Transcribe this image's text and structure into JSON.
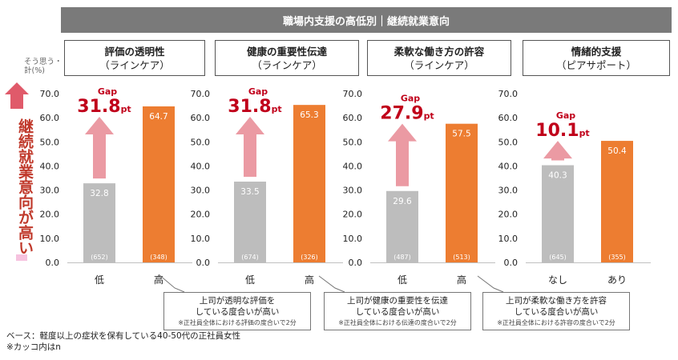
{
  "banner": "職場内支援の高低別｜継続就業意向",
  "y_unit_label": [
    "そう思う・",
    "計(%)"
  ],
  "vertical_label": "継続就業意向が高い",
  "notes": [
    "ベース：軽度以上の症状を保有している40-50代の正社員女性",
    "※カッコ内はn"
  ],
  "panels": [
    {
      "title": "評価の透明性",
      "subtitle": "（ラインケア）"
    },
    {
      "title": "健康の重要性伝達",
      "subtitle": "（ラインケア）"
    },
    {
      "title": "柔軟な働き方の許容",
      "subtitle": "（ラインケア）"
    },
    {
      "title": "情緒的支援",
      "subtitle": "（ピアサポート）"
    }
  ],
  "callouts": [
    {
      "line1": "上司が透明な評価を",
      "line2": "している度合いが高い",
      "note": "※正社員全体における評価の度合いで2分"
    },
    {
      "line1": "上司が健康の重要性を伝達",
      "line2": "している度合いが高い",
      "note": "※正社員全体における伝達の度合いで2分"
    },
    {
      "line1": "上司が柔軟な働き方を許容",
      "line2": "している度合いが高い",
      "note": "※正社員全体における許容の度合いで2分"
    }
  ],
  "chart_data": [
    {
      "type": "bar",
      "title": "評価の透明性（ラインケア）",
      "categories": [
        "低",
        "高"
      ],
      "values": [
        32.8,
        64.7
      ],
      "n": [
        "(652)",
        "(348)"
      ],
      "gap_label": "Gap",
      "gap_value": "31.8",
      "gap_unit": "pt",
      "ylim": [
        0,
        70
      ],
      "yticks": [
        "0.0",
        "10.0",
        "20.0",
        "30.0",
        "40.0",
        "50.0",
        "60.0",
        "70.0"
      ],
      "colors": [
        "#bdbdbd",
        "#ed7d31"
      ]
    },
    {
      "type": "bar",
      "title": "健康の重要性伝達（ラインケア）",
      "categories": [
        "低",
        "高"
      ],
      "values": [
        33.5,
        65.3
      ],
      "n": [
        "(674)",
        "(326)"
      ],
      "gap_label": "Gap",
      "gap_value": "31.8",
      "gap_unit": "pt",
      "ylim": [
        0,
        70
      ],
      "yticks": [
        "0.0",
        "10.0",
        "20.0",
        "30.0",
        "40.0",
        "50.0",
        "60.0",
        "70.0"
      ],
      "colors": [
        "#bdbdbd",
        "#ed7d31"
      ]
    },
    {
      "type": "bar",
      "title": "柔軟な働き方の許容（ラインケア）",
      "categories": [
        "低",
        "高"
      ],
      "values": [
        29.6,
        57.5
      ],
      "n": [
        "(487)",
        "(513)"
      ],
      "gap_label": "Gap",
      "gap_value": "27.9",
      "gap_unit": "pt",
      "ylim": [
        0,
        70
      ],
      "yticks": [
        "0.0",
        "10.0",
        "20.0",
        "30.0",
        "40.0",
        "50.0",
        "60.0",
        "70.0"
      ],
      "colors": [
        "#bdbdbd",
        "#ed7d31"
      ]
    },
    {
      "type": "bar",
      "title": "情緒的支援（ピアサポート）",
      "categories": [
        "なし",
        "あり"
      ],
      "values": [
        40.3,
        50.4
      ],
      "n": [
        "(645)",
        "(355)"
      ],
      "gap_label": "Gap",
      "gap_value": "10.1",
      "gap_unit": "pt",
      "ylim": [
        0,
        70
      ],
      "yticks": [
        "0.0",
        "10.0",
        "20.0",
        "30.0",
        "40.0",
        "50.0",
        "60.0",
        "70.0"
      ],
      "colors": [
        "#bdbdbd",
        "#ed7d31"
      ]
    }
  ],
  "colors": {
    "gap_text": "#c0001a",
    "arrow": "#eb9aa3",
    "big_arrow": "#e05a6a"
  }
}
